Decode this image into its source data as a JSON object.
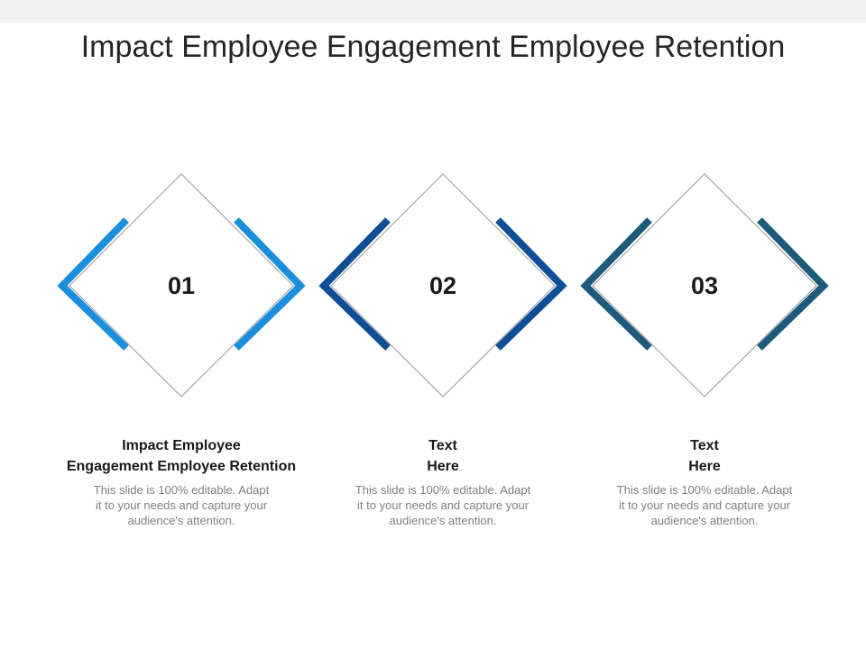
{
  "title": "Impact Employee Engagement Employee Retention",
  "items": [
    {
      "number": "01",
      "heading_line1": "Impact Employee",
      "heading_line2": "Engagement Employee Retention",
      "body_line1": "This slide is 100% editable. Adapt",
      "body_line2": "it to your needs and capture your",
      "body_line3": "audience's attention.",
      "color": "#1a8fde"
    },
    {
      "number": "02",
      "heading_line1": "Text",
      "heading_line2": "Here",
      "body_line1": "This slide is 100% editable. Adapt",
      "body_line2": "it to your needs and capture your",
      "body_line3": "audience's attention.",
      "color": "#0d4f96"
    },
    {
      "number": "03",
      "heading_line1": "Text",
      "heading_line2": "Here",
      "body_line1": "This slide is 100% editable. Adapt",
      "body_line2": "it to your needs and capture your",
      "body_line3": "audience's attention.",
      "color": "#1e5a7c"
    }
  ]
}
